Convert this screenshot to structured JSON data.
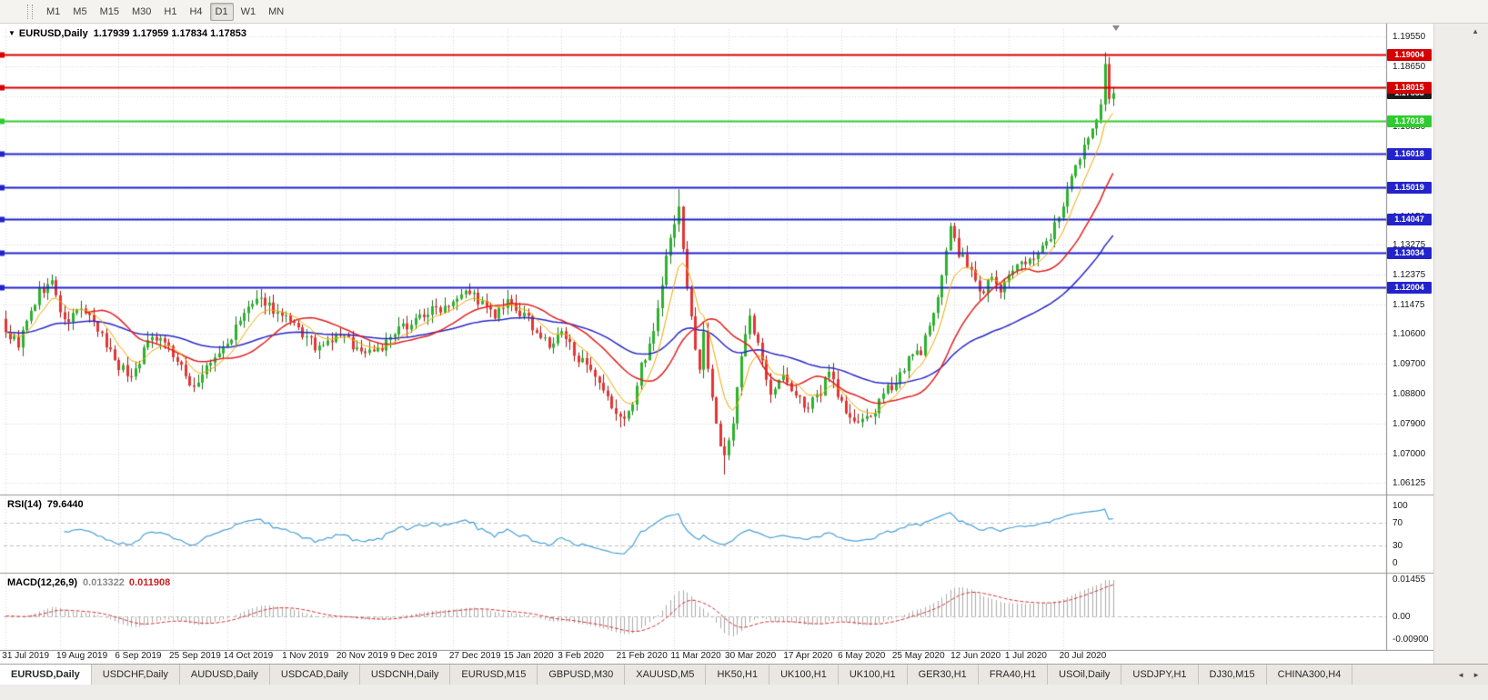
{
  "toolbar": {
    "timeframes": [
      "M1",
      "M5",
      "M15",
      "M30",
      "H1",
      "H4",
      "D1",
      "W1",
      "MN"
    ],
    "active_timeframe": "D1"
  },
  "icons": {
    "collapse": "▼",
    "scroll_up": "▲",
    "tab_left": "◄",
    "tab_right": "►"
  },
  "chart_header": {
    "symbol": "EURUSD,Daily",
    "ohlc": "1.17939 1.17959 1.17834 1.17853"
  },
  "rsi_panel": {
    "label": "RSI(14)",
    "value": "79.6440",
    "ticks": [
      "100",
      "70",
      "30",
      "0"
    ]
  },
  "macd_panel": {
    "label": "MACD(12,26,9)",
    "value_main": "0.013322",
    "value_signal": "0.011908",
    "ticks": [
      "0.01455",
      "0.00",
      "-0.00900"
    ]
  },
  "price_scale": {
    "current_price": "1.17853",
    "current_price_bg": "#1c1c1c"
  },
  "horizontal_lines": [
    {
      "price": 1.19004,
      "label": "1.19004",
      "color": "#d60000"
    },
    {
      "price": 1.18015,
      "label": "1.18015",
      "color": "#d60000"
    },
    {
      "price": 1.17018,
      "label": "1.17018",
      "color": "#2ecc2e"
    },
    {
      "price": 1.16018,
      "label": "1.16018",
      "color": "#2323cc"
    },
    {
      "price": 1.15019,
      "label": "1.15019",
      "color": "#2323cc"
    },
    {
      "price": 1.14047,
      "label": "1.14047",
      "color": "#2323cc"
    },
    {
      "price": 1.13034,
      "label": "1.13034",
      "color": "#2323cc"
    },
    {
      "price": 1.12004,
      "label": "1.12004",
      "color": "#2323cc"
    }
  ],
  "chart_data": {
    "type": "candlestick",
    "symbol": "EURUSD",
    "timeframe": "Daily",
    "bars": 266,
    "price_axis": {
      "min": 1.0592,
      "max": 1.1978,
      "ticks": [
        "1.19550",
        "1.18650",
        "1.17750",
        "1.16850",
        "1.15950",
        "1.15050",
        "1.14150",
        "1.13275",
        "1.12375",
        "1.11475",
        "1.10600",
        "1.09700",
        "1.08800",
        "1.07900",
        "1.07000",
        "1.06125"
      ]
    },
    "x_labels": [
      [
        "31 Jul 2019",
        0
      ],
      [
        "19 Aug 2019",
        13
      ],
      [
        "6 Sep 2019",
        27
      ],
      [
        "25 Sep 2019",
        40
      ],
      [
        "14 Oct 2019",
        53
      ],
      [
        "1 Nov 2019",
        67
      ],
      [
        "20 Nov 2019",
        80
      ],
      [
        "9 Dec 2019",
        93
      ],
      [
        "27 Dec 2019",
        107
      ],
      [
        "15 Jan 2020",
        120
      ],
      [
        "3 Feb 2020",
        133
      ],
      [
        "21 Feb 2020",
        147
      ],
      [
        "11 Mar 2020",
        160
      ],
      [
        "30 Mar 2020",
        173
      ],
      [
        "17 Apr 2020",
        187
      ],
      [
        "6 May 2020",
        200
      ],
      [
        "25 May 2020",
        213
      ],
      [
        "12 Jun 2020",
        227
      ],
      [
        "1 Jul 2020",
        240
      ],
      [
        "20 Jul 2020",
        253
      ]
    ],
    "close_anchors": [
      [
        0,
        1.1065
      ],
      [
        3,
        1.103
      ],
      [
        8,
        1.1185
      ],
      [
        11,
        1.1215
      ],
      [
        14,
        1.109
      ],
      [
        18,
        1.114
      ],
      [
        23,
        1.105
      ],
      [
        27,
        1.0965
      ],
      [
        30,
        1.093
      ],
      [
        35,
        1.106
      ],
      [
        38,
        1.104
      ],
      [
        43,
        1.093
      ],
      [
        45,
        1.09
      ],
      [
        48,
        1.0955
      ],
      [
        53,
        1.103
      ],
      [
        58,
        1.114
      ],
      [
        62,
        1.116
      ],
      [
        65,
        1.112
      ],
      [
        70,
        1.107
      ],
      [
        75,
        1.101
      ],
      [
        80,
        1.106
      ],
      [
        85,
        1.1005
      ],
      [
        90,
        1.102
      ],
      [
        95,
        1.108
      ],
      [
        100,
        1.112
      ],
      [
        105,
        1.1145
      ],
      [
        110,
        1.12
      ],
      [
        113,
        1.116
      ],
      [
        117,
        1.111
      ],
      [
        120,
        1.115
      ],
      [
        125,
        1.11
      ],
      [
        130,
        1.102
      ],
      [
        133,
        1.106
      ],
      [
        137,
        1.099
      ],
      [
        141,
        1.092
      ],
      [
        145,
        1.084
      ],
      [
        147,
        1.08
      ],
      [
        150,
        1.0845
      ],
      [
        152,
        1.096
      ],
      [
        154,
        1.103
      ],
      [
        156,
        1.113
      ],
      [
        158,
        1.129
      ],
      [
        160,
        1.14
      ],
      [
        161,
        1.145
      ],
      [
        162,
        1.131
      ],
      [
        164,
        1.11
      ],
      [
        166,
        1.095
      ],
      [
        167,
        1.106
      ],
      [
        169,
        1.088
      ],
      [
        171,
        1.072
      ],
      [
        172,
        1.068
      ],
      [
        174,
        1.08
      ],
      [
        176,
        1.1
      ],
      [
        178,
        1.11
      ],
      [
        180,
        1.102
      ],
      [
        183,
        1.089
      ],
      [
        186,
        1.093
      ],
      [
        189,
        1.087
      ],
      [
        192,
        1.084
      ],
      [
        195,
        1.088
      ],
      [
        197,
        1.096
      ],
      [
        199,
        1.088
      ],
      [
        202,
        1.08
      ],
      [
        205,
        1.079
      ],
      [
        208,
        1.083
      ],
      [
        211,
        1.089
      ],
      [
        213,
        1.092
      ],
      [
        216,
        1.098
      ],
      [
        219,
        1.101
      ],
      [
        222,
        1.111
      ],
      [
        224,
        1.125
      ],
      [
        226,
        1.138
      ],
      [
        228,
        1.13
      ],
      [
        231,
        1.125
      ],
      [
        233,
        1.118
      ],
      [
        236,
        1.123
      ],
      [
        238,
        1.119
      ],
      [
        240,
        1.123
      ],
      [
        243,
        1.127
      ],
      [
        246,
        1.13
      ],
      [
        249,
        1.133
      ],
      [
        251,
        1.139
      ],
      [
        253,
        1.144
      ],
      [
        255,
        1.152
      ],
      [
        257,
        1.159
      ],
      [
        259,
        1.165
      ],
      [
        261,
        1.172
      ],
      [
        262,
        1.175
      ],
      [
        263,
        1.188
      ],
      [
        264,
        1.176
      ],
      [
        265,
        1.1785
      ]
    ],
    "wick_overrides": {
      "147": {
        "low": 1.0778
      },
      "161": {
        "high": 1.1495
      },
      "172": {
        "low": 1.0636
      },
      "263": {
        "high": 1.1908
      }
    },
    "moving_averages": [
      {
        "type": "ema",
        "period": 55,
        "color": "#2828c8",
        "width": 1.5
      },
      {
        "type": "sma",
        "period": 20,
        "color": "#e02020",
        "width": 1.5
      },
      {
        "type": "ema",
        "period": 8,
        "color": "#efa900",
        "width": 1
      }
    ],
    "rsi": {
      "period": 14,
      "levels": [
        70,
        30
      ],
      "color": "#4aa0d8",
      "last": 79.644
    },
    "macd": {
      "fast": 12,
      "slow": 26,
      "signal": 9,
      "hist_color": "#ababab",
      "signal_color": "#d83030",
      "last_main": 0.013322,
      "last_signal": 0.011908,
      "scale_max": 0.015,
      "scale_min": -0.0095
    },
    "colors": {
      "up": "#2db22d",
      "down": "#e43535",
      "up_border": "#17771a",
      "down_border": "#a31212",
      "grid": "#d9d9d9"
    }
  },
  "tabs": {
    "items": [
      "EURUSD,Daily",
      "USDCHF,Daily",
      "AUDUSD,Daily",
      "USDCAD,Daily",
      "USDCNH,Daily",
      "EURUSD,M15",
      "GBPUSD,M30",
      "XAUUSD,M5",
      "HK50,H1",
      "UK100,H1",
      "UK100,H1",
      "GER30,H1",
      "FRA40,H1",
      "USOil,Daily",
      "USDJPY,H1",
      "DJ30,M15",
      "CHINA300,H4"
    ],
    "active_index": 0
  }
}
